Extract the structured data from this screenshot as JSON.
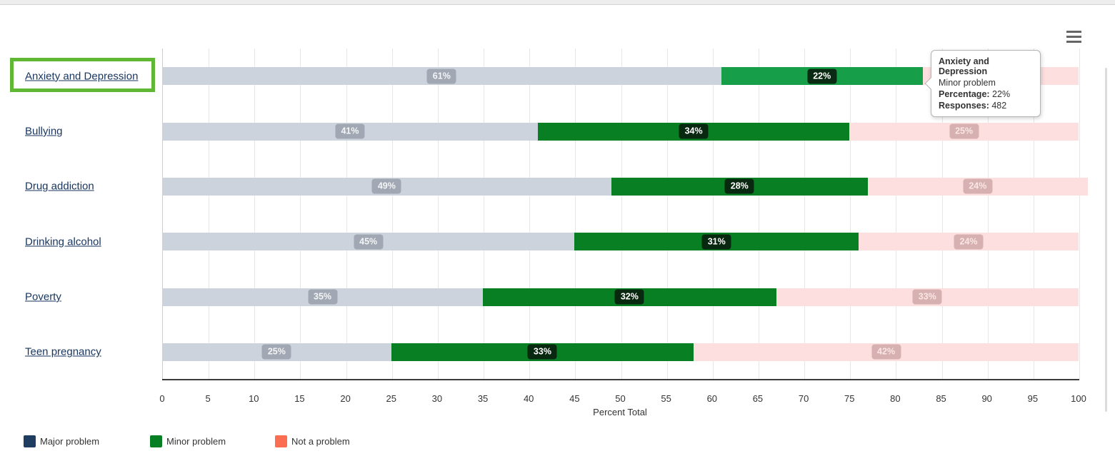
{
  "header": {
    "menu_icon": "hamburger-icon"
  },
  "chart_data": {
    "type": "bar",
    "stacking": "percent",
    "categories": [
      "Anxiety and Depression",
      "Bullying",
      "Drug addiction",
      "Drinking alcohol",
      "Poverty",
      "Teen pregnancy"
    ],
    "series": [
      {
        "name": "Major problem",
        "legend_color": "#1f3d60",
        "bar_color": "#ccd3dd",
        "state": "inactive",
        "values": [
          61,
          41,
          49,
          45,
          35,
          25
        ],
        "labels": [
          "61%",
          "41%",
          "49%",
          "45%",
          "35%",
          "25%"
        ],
        "label_style": "lbl-gray"
      },
      {
        "name": "Minor problem",
        "legend_color": "#087f23",
        "bar_color": "#087f23",
        "hover_color": "#169e48",
        "hover_index": 0,
        "state": "active",
        "values": [
          22,
          34,
          28,
          31,
          32,
          33
        ],
        "labels": [
          "22%",
          "34%",
          "28%",
          "31%",
          "32%",
          "33%"
        ],
        "label_style": "lbl-green"
      },
      {
        "name": "Not a problem",
        "legend_color": "#fb6e51",
        "bar_color": "#fcdfde",
        "state": "inactive",
        "values": [
          17,
          25,
          24,
          24,
          33,
          42
        ],
        "labels": [
          null,
          "25%",
          "24%",
          "24%",
          "33%",
          "42%"
        ],
        "label_style": "lbl-pink"
      }
    ],
    "xaxis": {
      "min": 0,
      "max": 100,
      "step": 5,
      "title": "Percent Total"
    },
    "grid": true,
    "legend_position": "bottom-left"
  },
  "tooltip": {
    "title": "Anxiety and Depression",
    "subtitle": "Minor problem",
    "rows": [
      {
        "label": "Percentage:",
        "value": "22%"
      },
      {
        "label": "Responses:",
        "value": "482"
      }
    ]
  },
  "legend": {
    "items": [
      {
        "label": "Major problem",
        "color": "#1f3d60"
      },
      {
        "label": "Minor problem",
        "color": "#087f23"
      },
      {
        "label": "Not a problem",
        "color": "#fb6e51"
      }
    ]
  },
  "annotation": {
    "target": "Anxiety and Depression",
    "border_color": "#5fb733"
  }
}
